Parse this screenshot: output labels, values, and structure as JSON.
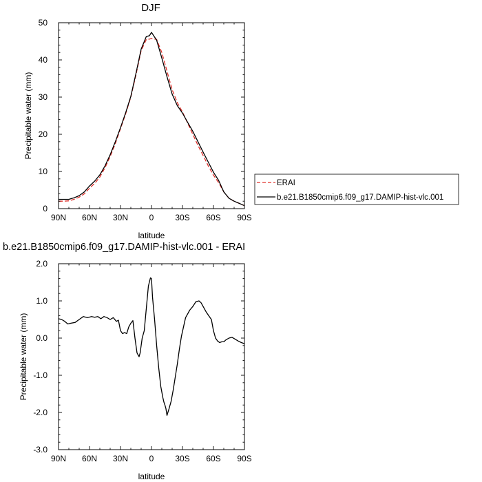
{
  "chart_data": [
    {
      "type": "line",
      "title": "DJF",
      "xlabel": "latitude",
      "ylabel": "Precipitable water (mm)",
      "xlim": [
        90,
        -90
      ],
      "ylim": [
        0,
        50
      ],
      "x_ticks": [
        90,
        60,
        30,
        0,
        -30,
        -60,
        -90
      ],
      "x_tick_labels": [
        "90N",
        "60N",
        "30N",
        "0",
        "30S",
        "60S",
        "90S"
      ],
      "y_ticks": [
        0,
        10,
        20,
        30,
        40,
        50
      ],
      "y_tick_labels": [
        "0",
        "10",
        "20",
        "30",
        "40",
        "50"
      ],
      "grid": false,
      "legend_position": "right",
      "legend": [
        "ERAI",
        "b.e21.B1850cmip6.f09_g17.DAMIP-hist-vlc.001"
      ],
      "series": [
        {
          "name": "ERAI",
          "color": "#e0302a",
          "dash": "dashed",
          "x": [
            90,
            85,
            80,
            75,
            70,
            65,
            60,
            55,
            50,
            45,
            40,
            35,
            30,
            25,
            20,
            15,
            10,
            5,
            2,
            0,
            -5,
            -10,
            -15,
            -20,
            -25,
            -30,
            -35,
            -40,
            -45,
            -50,
            -55,
            -60,
            -65,
            -70,
            -75,
            -80,
            -85,
            -90
          ],
          "y": [
            2.0,
            2.0,
            2.1,
            2.5,
            3.1,
            4.0,
            5.5,
            6.8,
            8.5,
            11.0,
            14.0,
            17.5,
            21.5,
            25.5,
            30.0,
            36.0,
            42.5,
            45.5,
            45.6,
            45.8,
            45.5,
            42.0,
            37.0,
            32.0,
            28.5,
            26.0,
            23.0,
            20.0,
            17.0,
            14.3,
            11.5,
            9.0,
            7.0,
            4.5,
            2.8,
            2.0,
            1.4,
            0.8
          ]
        },
        {
          "name": "b.e21.B1850cmip6.f09_g17.DAMIP-hist-vlc.001",
          "color": "#000000",
          "dash": "solid",
          "x": [
            90,
            85,
            80,
            75,
            70,
            65,
            60,
            55,
            50,
            45,
            40,
            35,
            30,
            25,
            20,
            15,
            10,
            5,
            2,
            0,
            -5,
            -10,
            -15,
            -20,
            -25,
            -30,
            -35,
            -40,
            -45,
            -50,
            -55,
            -60,
            -65,
            -70,
            -75,
            -80,
            -85,
            -90
          ],
          "y": [
            2.5,
            2.5,
            2.5,
            2.9,
            3.5,
            4.5,
            6.1,
            7.4,
            9.1,
            11.5,
            14.5,
            18.0,
            21.8,
            25.8,
            30.2,
            36.4,
            42.9,
            46.3,
            46.5,
            47.4,
            45.3,
            40.5,
            35.5,
            30.8,
            27.7,
            25.7,
            23.2,
            20.8,
            18.0,
            15.2,
            12.5,
            9.8,
            7.6,
            4.5,
            2.8,
            2.0,
            1.4,
            0.8
          ]
        }
      ]
    },
    {
      "type": "line",
      "title": "b.e21.B1850cmip6.f09_g17.DAMIP-hist-vlc.001 - ERAI",
      "xlabel": "latitude",
      "ylabel": "Precipitable water (mm)",
      "xlim": [
        90,
        -90
      ],
      "ylim": [
        -3.0,
        2.0
      ],
      "x_ticks": [
        90,
        60,
        30,
        0,
        -30,
        -60,
        -90
      ],
      "x_tick_labels": [
        "90N",
        "60N",
        "30N",
        "0",
        "30S",
        "60S",
        "90S"
      ],
      "y_ticks": [
        -3,
        -2,
        -1,
        0,
        1,
        2
      ],
      "y_tick_labels": [
        "-3.0",
        "-2.0",
        "-1.0",
        "0.0",
        "1.0",
        "2.0"
      ],
      "grid": false,
      "series": [
        {
          "color": "#000000",
          "dash": "solid",
          "x": [
            90,
            87,
            84,
            81,
            78,
            74,
            70,
            66,
            62,
            58,
            55,
            52,
            49,
            46,
            43,
            40,
            37,
            34,
            32,
            30,
            28,
            26,
            24,
            22,
            20,
            18,
            16,
            14,
            12,
            11,
            9,
            7,
            5,
            3,
            1,
            0,
            -1,
            -2,
            -3,
            -5,
            -7,
            -9,
            -11,
            -12,
            -13,
            -14,
            -15,
            -17,
            -19,
            -21,
            -23,
            -25,
            -27,
            -29,
            -31,
            -33,
            -35,
            -37,
            -40,
            -43,
            -46,
            -48,
            -50,
            -53,
            -56,
            -58,
            -60,
            -62,
            -64,
            -66,
            -68,
            -70,
            -72,
            -75,
            -78,
            -81,
            -84,
            -87,
            -90
          ],
          "y": [
            0.52,
            0.5,
            0.45,
            0.38,
            0.4,
            0.42,
            0.5,
            0.58,
            0.55,
            0.58,
            0.56,
            0.58,
            0.52,
            0.58,
            0.55,
            0.5,
            0.55,
            0.45,
            0.48,
            0.2,
            0.12,
            0.15,
            0.12,
            0.3,
            0.4,
            0.47,
            0.0,
            -0.4,
            -0.5,
            -0.4,
            0.0,
            0.2,
            0.8,
            1.4,
            1.62,
            1.6,
            1.1,
            0.8,
            0.5,
            -0.2,
            -0.8,
            -1.3,
            -1.6,
            -1.72,
            -1.8,
            -1.9,
            -2.08,
            -1.9,
            -1.7,
            -1.4,
            -1.05,
            -0.7,
            -0.3,
            0.05,
            0.3,
            0.55,
            0.65,
            0.75,
            0.85,
            0.98,
            1.0,
            0.95,
            0.85,
            0.7,
            0.58,
            0.5,
            0.2,
            0.0,
            -0.08,
            -0.12,
            -0.1,
            -0.1,
            -0.05,
            0.0,
            0.02,
            -0.03,
            -0.08,
            -0.12,
            -0.15
          ]
        }
      ]
    }
  ]
}
